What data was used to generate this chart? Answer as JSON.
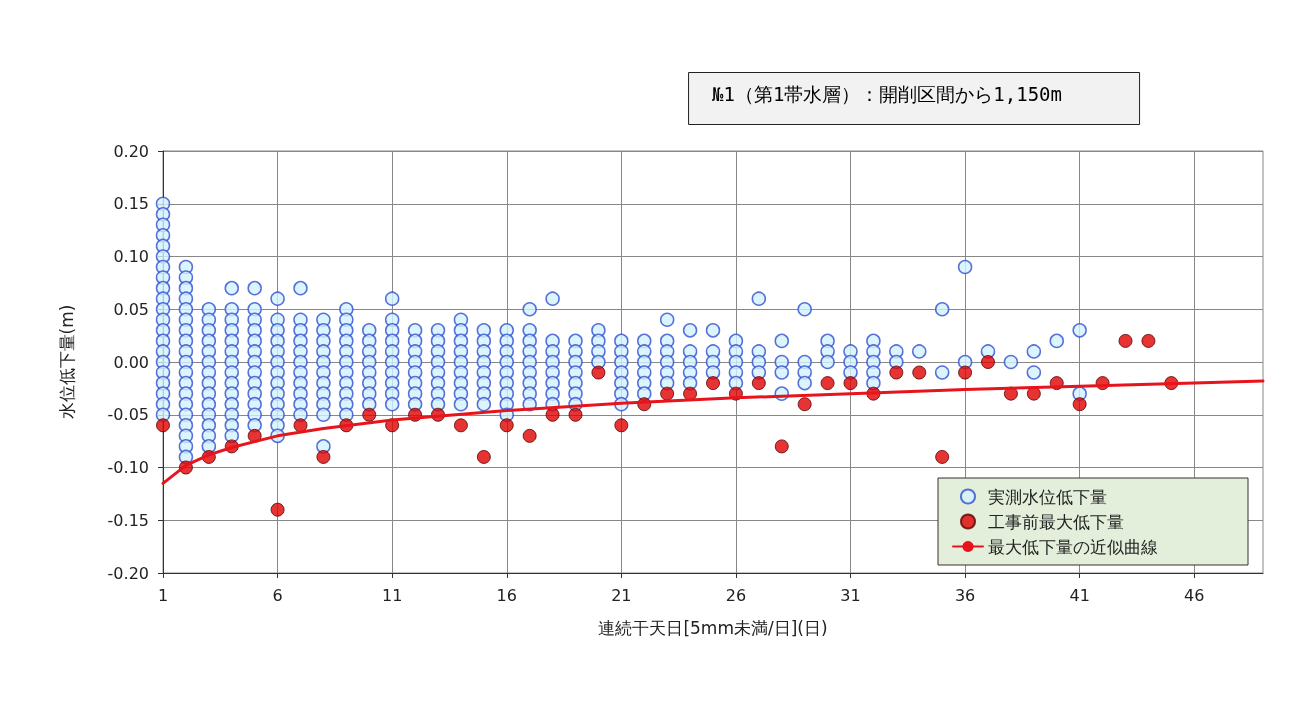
{
  "chart_data": {
    "type": "scatter",
    "title": "№1（第1帯水層）：開削区間から1,150m",
    "xlabel": "連続干天日[5mm未満/日](日)",
    "ylabel": "水位低下量(m)",
    "xlim": [
      1,
      49
    ],
    "xticks": [
      1,
      6,
      11,
      16,
      21,
      26,
      31,
      36,
      41,
      46
    ],
    "ylim": [
      -0.2,
      0.2
    ],
    "yticks": [
      {
        "value": -0.2,
        "label": "-0.20"
      },
      {
        "value": -0.15,
        "label": "-0.15"
      },
      {
        "value": -0.1,
        "label": "-0.10"
      },
      {
        "value": -0.05,
        "label": "-0.05"
      },
      {
        "value": 0,
        "label": "0.00"
      },
      {
        "value": 0.05,
        "label": "0.05"
      },
      {
        "value": 0.1,
        "label": "0.10"
      },
      {
        "value": 0.15,
        "label": "0.15"
      },
      {
        "value": 0.2,
        "label": "0.20"
      }
    ],
    "grid": true,
    "legend": "bottom right",
    "marker": "circle",
    "series": [
      {
        "name": "実測水位低下量",
        "color": "#2f4fd0",
        "x": [
          1,
          1,
          1,
          1,
          1,
          1,
          1,
          1,
          1,
          1,
          1,
          1,
          1,
          1,
          1,
          1,
          1,
          1,
          1,
          1,
          1,
          2,
          2,
          2,
          2,
          2,
          2,
          2,
          2,
          2,
          2,
          2,
          2,
          2,
          2,
          2,
          2,
          2,
          2,
          2,
          3,
          3,
          3,
          3,
          3,
          3,
          3,
          3,
          3,
          3,
          3,
          3,
          3,
          3,
          4,
          4,
          4,
          4,
          4,
          4,
          4,
          4,
          4,
          4,
          4,
          4,
          4,
          4,
          5,
          5,
          5,
          5,
          5,
          5,
          5,
          5,
          5,
          5,
          5,
          5,
          5,
          6,
          6,
          6,
          6,
          6,
          6,
          6,
          6,
          6,
          6,
          6,
          6,
          6,
          7,
          7,
          7,
          7,
          7,
          7,
          7,
          7,
          7,
          7,
          7,
          8,
          8,
          8,
          8,
          8,
          8,
          8,
          8,
          8,
          8,
          8,
          9,
          9,
          9,
          9,
          9,
          9,
          9,
          9,
          9,
          9,
          9,
          10,
          10,
          10,
          10,
          10,
          10,
          10,
          10,
          11,
          11,
          11,
          11,
          11,
          11,
          11,
          11,
          11,
          11,
          12,
          12,
          12,
          12,
          12,
          12,
          12,
          12,
          13,
          13,
          13,
          13,
          13,
          13,
          13,
          13,
          14,
          14,
          14,
          14,
          14,
          14,
          14,
          14,
          14,
          15,
          15,
          15,
          15,
          15,
          15,
          15,
          15,
          16,
          16,
          16,
          16,
          16,
          16,
          16,
          16,
          16,
          17,
          17,
          17,
          17,
          17,
          17,
          17,
          17,
          17,
          18,
          18,
          18,
          18,
          18,
          18,
          18,
          18,
          19,
          19,
          19,
          19,
          19,
          19,
          19,
          20,
          20,
          20,
          20,
          21,
          21,
          21,
          21,
          21,
          21,
          21,
          22,
          22,
          22,
          22,
          22,
          22,
          23,
          23,
          23,
          23,
          23,
          23,
          24,
          24,
          24,
          24,
          24,
          25,
          25,
          25,
          25,
          26,
          26,
          26,
          26,
          26,
          27,
          27,
          27,
          27,
          28,
          28,
          28,
          28,
          29,
          29,
          29,
          29,
          30,
          30,
          30,
          31,
          31,
          31,
          32,
          32,
          32,
          32,
          32,
          33,
          33,
          34,
          35,
          35,
          36,
          36,
          37,
          38,
          39,
          39,
          40,
          41,
          41
        ],
        "values": [
          0.15,
          0.14,
          0.13,
          0.12,
          0.11,
          0.1,
          0.09,
          0.08,
          0.07,
          0.06,
          0.05,
          0.04,
          0.03,
          0.02,
          0.01,
          0,
          -0.01,
          -0.02,
          -0.03,
          -0.04,
          -0.05,
          0.09,
          0.08,
          0.07,
          0.06,
          0.05,
          0.04,
          0.03,
          0.02,
          0.01,
          0,
          -0.01,
          -0.02,
          -0.03,
          -0.04,
          -0.05,
          -0.06,
          -0.07,
          -0.08,
          -0.09,
          0.05,
          0.04,
          0.03,
          0.02,
          0.01,
          0,
          -0.01,
          -0.02,
          -0.03,
          -0.04,
          -0.05,
          -0.06,
          -0.07,
          -0.08,
          0.07,
          0.05,
          0.04,
          0.03,
          0.02,
          0.01,
          0,
          -0.01,
          -0.02,
          -0.03,
          -0.04,
          -0.05,
          -0.06,
          -0.07,
          0.07,
          0.05,
          0.04,
          0.03,
          0.02,
          0.01,
          0,
          -0.01,
          -0.02,
          -0.03,
          -0.04,
          -0.05,
          -0.06,
          0.06,
          0.04,
          0.03,
          0.02,
          0.01,
          0,
          -0.01,
          -0.02,
          -0.03,
          -0.04,
          -0.05,
          -0.06,
          -0.07,
          0.07,
          0.04,
          0.03,
          0.02,
          0.01,
          0,
          -0.01,
          -0.02,
          -0.03,
          -0.04,
          -0.05,
          0.04,
          0.03,
          0.02,
          0.01,
          0,
          -0.01,
          -0.02,
          -0.03,
          -0.04,
          -0.05,
          -0.08,
          0.05,
          0.04,
          0.03,
          0.02,
          0.01,
          0,
          -0.01,
          -0.02,
          -0.03,
          -0.04,
          -0.05,
          0.03,
          0.02,
          0.01,
          0,
          -0.01,
          -0.02,
          -0.03,
          -0.04,
          0.06,
          0.04,
          0.03,
          0.02,
          0.01,
          0,
          -0.01,
          -0.02,
          -0.03,
          -0.04,
          0.03,
          0.02,
          0.01,
          0,
          -0.01,
          -0.02,
          -0.03,
          -0.04,
          0.03,
          0.02,
          0.01,
          0,
          -0.01,
          -0.02,
          -0.03,
          -0.04,
          0.04,
          0.03,
          0.02,
          0.01,
          0,
          -0.01,
          -0.02,
          -0.03,
          -0.04,
          0.03,
          0.02,
          0.01,
          0,
          -0.01,
          -0.02,
          -0.03,
          -0.04,
          0.03,
          0.02,
          0.01,
          0,
          -0.01,
          -0.02,
          -0.03,
          -0.04,
          -0.05,
          0.05,
          0.03,
          0.02,
          0.01,
          0,
          -0.01,
          -0.02,
          -0.03,
          -0.04,
          0.06,
          0.02,
          0.01,
          0,
          -0.01,
          -0.02,
          -0.03,
          -0.04,
          0.02,
          0.01,
          0,
          -0.01,
          -0.02,
          -0.03,
          -0.04,
          0.03,
          0.02,
          0.01,
          0,
          0.02,
          0.01,
          0,
          -0.01,
          -0.02,
          -0.03,
          -0.04,
          0.02,
          0.01,
          0,
          -0.01,
          -0.02,
          -0.03,
          0.04,
          0.02,
          0.01,
          0,
          -0.01,
          -0.02,
          0.03,
          0.01,
          0,
          -0.01,
          -0.02,
          0.03,
          0.01,
          0,
          -0.01,
          0.02,
          0.01,
          0,
          -0.01,
          -0.02,
          0.06,
          0.01,
          0,
          -0.01,
          0.02,
          0,
          -0.01,
          -0.03,
          0.05,
          0,
          -0.01,
          -0.02,
          0.02,
          0.01,
          0,
          0.01,
          0,
          -0.01,
          0.02,
          0.01,
          0,
          -0.01,
          -0.02,
          0.01,
          0,
          0.01,
          0.05,
          -0.01,
          0.09,
          0,
          0.01,
          0,
          0.01,
          -0.01,
          0.02,
          0.03,
          -0.03
        ]
      },
      {
        "name": "工事前最大低下量",
        "color": "#e00000",
        "x": [
          1,
          2,
          3,
          4,
          5,
          6,
          7,
          8,
          9,
          10,
          11,
          12,
          13,
          14,
          15,
          16,
          17,
          18,
          19,
          20,
          21,
          22,
          23,
          24,
          25,
          26,
          27,
          28,
          29,
          30,
          31,
          32,
          33,
          34,
          35,
          36,
          37,
          38,
          39,
          40,
          41,
          42,
          43,
          44,
          45
        ],
        "values": [
          -0.06,
          -0.1,
          -0.09,
          -0.08,
          -0.07,
          -0.14,
          -0.06,
          -0.09,
          -0.06,
          -0.05,
          -0.06,
          -0.05,
          -0.05,
          -0.06,
          -0.09,
          -0.06,
          -0.07,
          -0.05,
          -0.05,
          -0.01,
          -0.06,
          -0.04,
          -0.03,
          -0.03,
          -0.02,
          -0.03,
          -0.02,
          -0.08,
          -0.04,
          -0.02,
          -0.02,
          -0.03,
          -0.01,
          -0.01,
          -0.09,
          -0.01,
          0,
          -0.03,
          -0.03,
          -0.02,
          -0.04,
          -0.02,
          0.02,
          0.02,
          -0.02
        ]
      },
      {
        "name": "最大低下量の近似曲線",
        "type": "line",
        "marker": "none",
        "line_style": "solid",
        "color": "#e8141c",
        "x": [
          1,
          2,
          3,
          4,
          6,
          8,
          11,
          16,
          21,
          26,
          31,
          36,
          41,
          46,
          49
        ],
        "values": [
          -0.115,
          -0.098,
          -0.088,
          -0.081,
          -0.07,
          -0.063,
          -0.055,
          -0.046,
          -0.039,
          -0.034,
          -0.03,
          -0.026,
          -0.023,
          -0.02,
          -0.018
        ]
      }
    ]
  }
}
